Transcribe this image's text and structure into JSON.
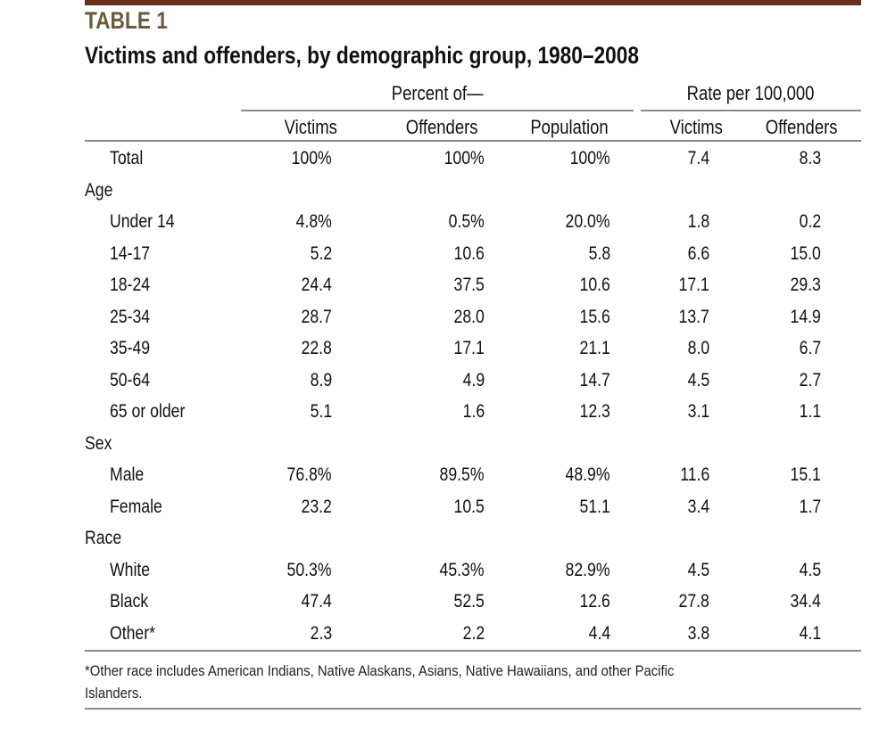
{
  "table_label": "TABLE 1",
  "title": "Victims and offenders, by demographic group, 1980–2008",
  "group_headers": {
    "percent": "Percent of—",
    "rate": "Rate per 100,000"
  },
  "columns": [
    "Victims",
    "Offenders",
    "Population",
    "Victims",
    "Offenders"
  ],
  "rows": [
    {
      "label": "Total",
      "bold": true,
      "values": [
        "100%",
        "100%",
        "100%",
        "7.4",
        "8.3"
      ]
    },
    {
      "section": "Age"
    },
    {
      "label": "Under 14",
      "values": [
        "4.8%",
        "0.5%",
        "20.0%",
        "1.8",
        "0.2"
      ]
    },
    {
      "label": "14-17",
      "values": [
        "5.2",
        "10.6",
        "5.8",
        "6.6",
        "15.0"
      ]
    },
    {
      "label": "18-24",
      "values": [
        "24.4",
        "37.5",
        "10.6",
        "17.1",
        "29.3"
      ]
    },
    {
      "label": "25-34",
      "values": [
        "28.7",
        "28.0",
        "15.6",
        "13.7",
        "14.9"
      ]
    },
    {
      "label": "35-49",
      "values": [
        "22.8",
        "17.1",
        "21.1",
        "8.0",
        "6.7"
      ]
    },
    {
      "label": "50-64",
      "values": [
        "8.9",
        "4.9",
        "14.7",
        "4.5",
        "2.7"
      ]
    },
    {
      "label": "65 or older",
      "values": [
        "5.1",
        "1.6",
        "12.3",
        "3.1",
        "1.1"
      ]
    },
    {
      "section": "Sex"
    },
    {
      "label": "Male",
      "values": [
        "76.8%",
        "89.5%",
        "48.9%",
        "11.6",
        "15.1"
      ]
    },
    {
      "label": "Female",
      "values": [
        "23.2",
        "10.5",
        "51.1",
        "3.4",
        "1.7"
      ]
    },
    {
      "section": "Race"
    },
    {
      "label": "White",
      "values": [
        "50.3%",
        "45.3%",
        "82.9%",
        "4.5",
        "4.5"
      ]
    },
    {
      "label": "Black",
      "values": [
        "47.4",
        "52.5",
        "12.6",
        "27.8",
        "34.4"
      ]
    },
    {
      "label": "Other*",
      "values": [
        "2.3",
        "2.2",
        "4.4",
        "3.8",
        "4.1"
      ]
    }
  ],
  "footnote": {
    "line1": "*Other race includes American Indians, Native Alaskans, Asians, Native Hawaiians, and other Pacific",
    "line2": "Islanders."
  },
  "colors": {
    "top_bar": "#6b2e1a",
    "table_label": "#6b5a3e",
    "rules": "#8a8a8a"
  }
}
